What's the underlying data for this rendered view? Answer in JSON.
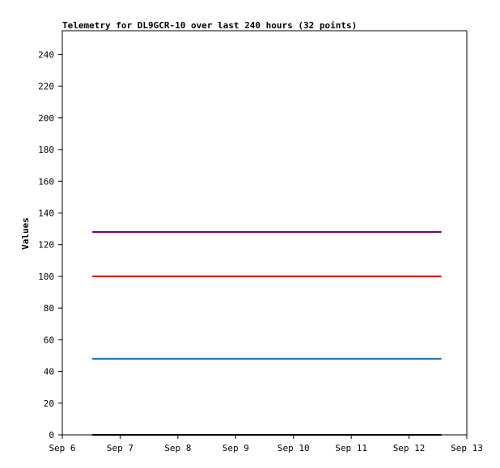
{
  "chart_data": {
    "type": "line",
    "title": "Telemetry for DL9GCR-10 over last 240 hours (32 points)",
    "xlabel": "",
    "ylabel": "Values",
    "x_categories": [
      "Sep 6",
      "Sep 7",
      "Sep 8",
      "Sep 9",
      "Sep 10",
      "Sep 11",
      "Sep 12",
      "Sep 13"
    ],
    "x_range": [
      0,
      7
    ],
    "ylim": [
      0,
      255
    ],
    "y_ticks": [
      0,
      20,
      40,
      60,
      80,
      100,
      120,
      140,
      160,
      180,
      200,
      220,
      240
    ],
    "grid": false,
    "legend": "none",
    "series": [
      {
        "x": [
          0.52,
          6.56
        ],
        "values": [
          128,
          128
        ],
        "color": "#6f006f"
      },
      {
        "x": [
          0.52,
          6.56
        ],
        "values": [
          100,
          100
        ],
        "color": "#e00000"
      },
      {
        "x": [
          0.52,
          6.56
        ],
        "values": [
          48,
          48
        ],
        "color": "#1e6fa8"
      },
      {
        "x": [
          0.52,
          6.56
        ],
        "values": [
          0,
          0
        ],
        "color": "#000000"
      }
    ]
  }
}
